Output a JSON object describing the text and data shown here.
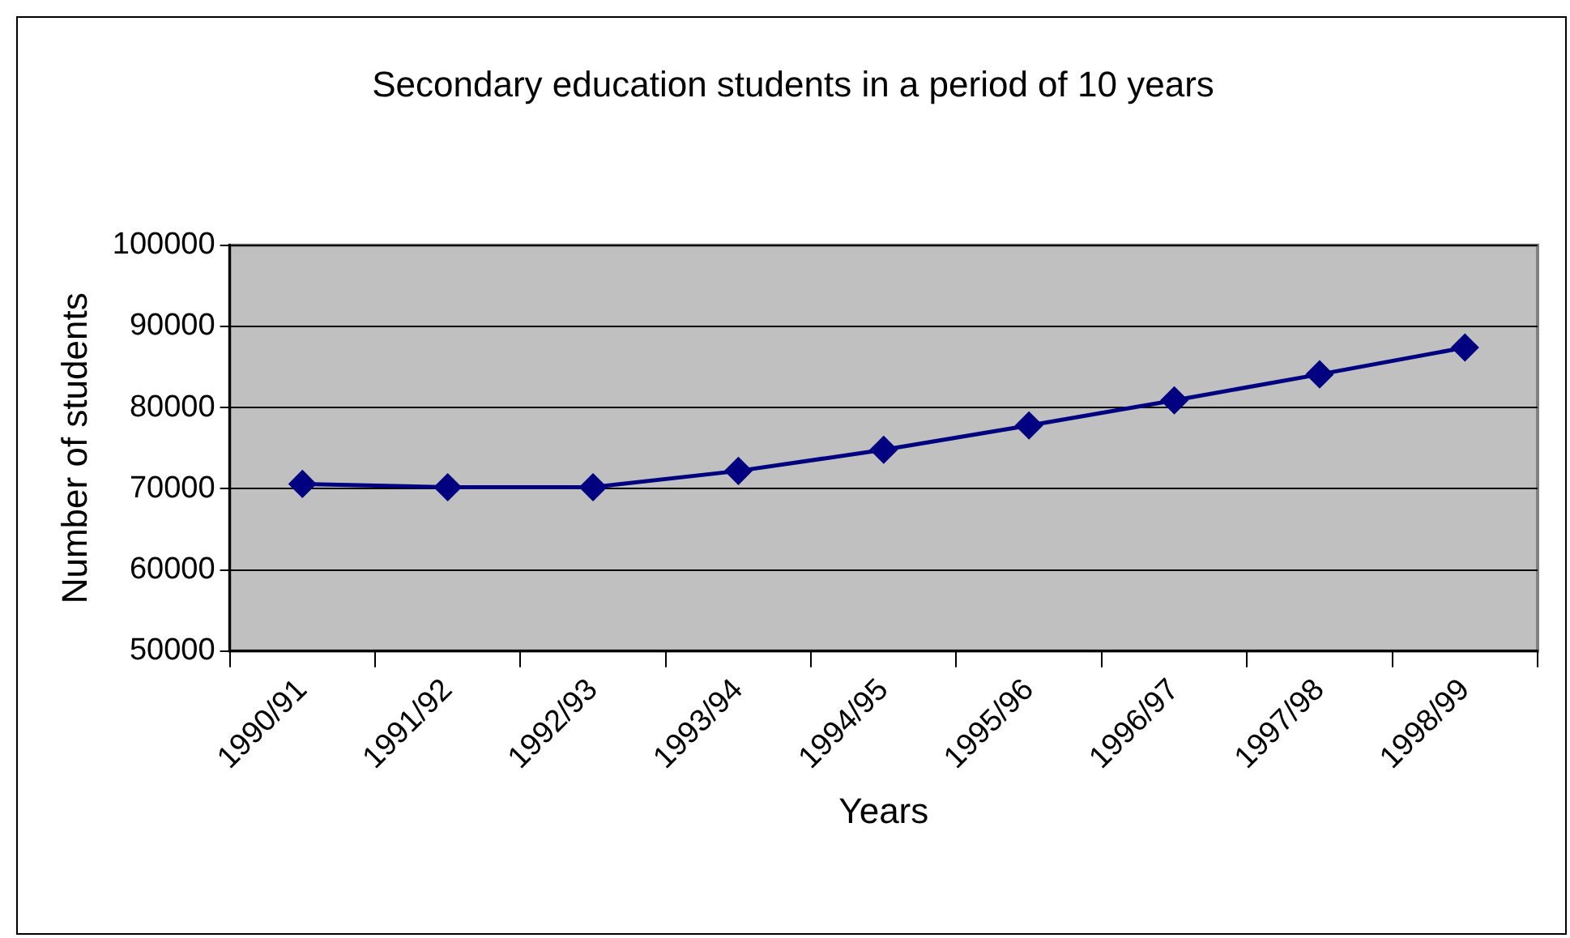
{
  "chart_data": {
    "type": "line",
    "title": "Secondary education students in a period of 10 years",
    "xlabel": "Years",
    "ylabel": "Number of students",
    "categories": [
      "1990/91",
      "1991/92",
      "1992/93",
      "1993/94",
      "1994/95",
      "1995/96",
      "1996/97",
      "1997/98",
      "1998/99"
    ],
    "series": [
      {
        "color": "#000080",
        "values": [
          70600,
          70200,
          70200,
          72200,
          74800,
          77800,
          80900,
          84100,
          87400
        ]
      }
    ],
    "ylim": [
      50000,
      100000
    ],
    "yticks": [
      50000,
      60000,
      70000,
      80000,
      90000,
      100000
    ],
    "grid": "y",
    "legend": false,
    "marker": "diamond",
    "line_style": "solid"
  }
}
